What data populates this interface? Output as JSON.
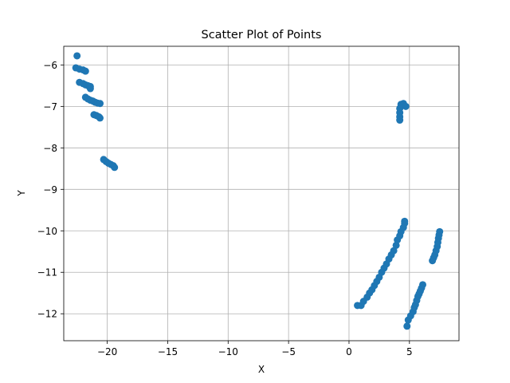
{
  "chart_data": {
    "type": "scatter",
    "title": "Scatter Plot of Points",
    "xlabel": "X",
    "ylabel": "Y",
    "xlim": [
      -23.6,
      9.1
    ],
    "ylim": [
      -12.65,
      -5.55
    ],
    "xticks": [
      -20,
      -15,
      -10,
      -5,
      0,
      5
    ],
    "xtick_labels": [
      "−20",
      "−15",
      "−10",
      "−5",
      "0",
      "5"
    ],
    "yticks": [
      -6,
      -7,
      -8,
      -9,
      -10,
      -11,
      -12
    ],
    "ytick_labels": [
      "−6",
      "−7",
      "−8",
      "−9",
      "−10",
      "−11",
      "−12"
    ],
    "grid": true,
    "marker_color": "#1f77b4",
    "points": [
      [
        -22.5,
        -5.78
      ],
      [
        -22.6,
        -6.07
      ],
      [
        -22.3,
        -6.1
      ],
      [
        -22.0,
        -6.12
      ],
      [
        -21.8,
        -6.15
      ],
      [
        -22.3,
        -6.42
      ],
      [
        -22.0,
        -6.45
      ],
      [
        -21.8,
        -6.48
      ],
      [
        -21.6,
        -6.5
      ],
      [
        -21.4,
        -6.52
      ],
      [
        -21.4,
        -6.57
      ],
      [
        -21.8,
        -6.78
      ],
      [
        -21.6,
        -6.82
      ],
      [
        -21.4,
        -6.85
      ],
      [
        -21.2,
        -6.87
      ],
      [
        -21.0,
        -6.9
      ],
      [
        -20.8,
        -6.92
      ],
      [
        -20.6,
        -6.93
      ],
      [
        -21.1,
        -7.2
      ],
      [
        -20.9,
        -7.22
      ],
      [
        -20.7,
        -7.25
      ],
      [
        -20.6,
        -7.28
      ],
      [
        -20.3,
        -8.28
      ],
      [
        -20.1,
        -8.33
      ],
      [
        -19.9,
        -8.37
      ],
      [
        -19.7,
        -8.4
      ],
      [
        -19.5,
        -8.43
      ],
      [
        -19.4,
        -8.47
      ],
      [
        4.3,
        -6.95
      ],
      [
        4.5,
        -6.93
      ],
      [
        4.7,
        -7.0
      ],
      [
        4.2,
        -7.05
      ],
      [
        4.2,
        -7.15
      ],
      [
        4.2,
        -7.25
      ],
      [
        4.2,
        -7.33
      ],
      [
        0.7,
        -11.8
      ],
      [
        1.0,
        -11.8
      ],
      [
        1.2,
        -11.7
      ],
      [
        1.5,
        -11.6
      ],
      [
        1.7,
        -11.5
      ],
      [
        1.9,
        -11.42
      ],
      [
        2.1,
        -11.32
      ],
      [
        2.3,
        -11.22
      ],
      [
        2.5,
        -11.12
      ],
      [
        2.7,
        -11.0
      ],
      [
        2.9,
        -10.9
      ],
      [
        3.1,
        -10.8
      ],
      [
        3.3,
        -10.68
      ],
      [
        3.5,
        -10.58
      ],
      [
        3.7,
        -10.48
      ],
      [
        3.9,
        -10.35
      ],
      [
        4.0,
        -10.22
      ],
      [
        4.2,
        -10.12
      ],
      [
        4.3,
        -10.02
      ],
      [
        4.5,
        -9.92
      ],
      [
        4.6,
        -9.82
      ],
      [
        4.6,
        -9.77
      ],
      [
        4.8,
        -12.3
      ],
      [
        4.9,
        -12.15
      ],
      [
        5.1,
        -12.05
      ],
      [
        5.3,
        -11.95
      ],
      [
        5.4,
        -11.85
      ],
      [
        5.5,
        -11.78
      ],
      [
        5.6,
        -11.68
      ],
      [
        5.7,
        -11.58
      ],
      [
        5.8,
        -11.52
      ],
      [
        5.9,
        -11.45
      ],
      [
        6.0,
        -11.38
      ],
      [
        6.1,
        -11.3
      ],
      [
        6.9,
        -10.72
      ],
      [
        7.0,
        -10.65
      ],
      [
        7.1,
        -10.58
      ],
      [
        7.2,
        -10.48
      ],
      [
        7.3,
        -10.38
      ],
      [
        7.35,
        -10.28
      ],
      [
        7.4,
        -10.18
      ],
      [
        7.45,
        -10.1
      ],
      [
        7.5,
        -10.02
      ]
    ]
  }
}
